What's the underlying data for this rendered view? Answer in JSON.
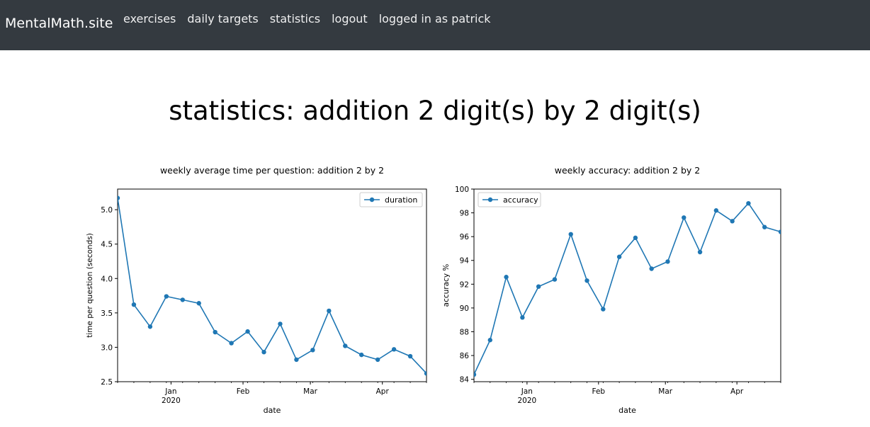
{
  "nav": {
    "brand": "MentalMath.site",
    "links": [
      "exercises",
      "daily targets",
      "statistics",
      "logout",
      "logged in as patrick"
    ]
  },
  "page_title": "statistics: addition 2 digit(s) by 2 digit(s)",
  "colors": {
    "navbar": "#343a40",
    "series": "#1f77b4"
  },
  "chart_data": [
    {
      "type": "line",
      "title": "weekly average time per question: addition 2 by 2",
      "xlabel": "date",
      "ylabel": "time per question (seconds)",
      "legend": "upper right",
      "series": [
        {
          "name": "duration",
          "x": [
            "2019-12-09",
            "2019-12-16",
            "2019-12-23",
            "2019-12-30",
            "2020-01-06",
            "2020-01-13",
            "2020-01-20",
            "2020-01-27",
            "2020-02-03",
            "2020-02-10",
            "2020-02-17",
            "2020-02-24",
            "2020-03-02",
            "2020-03-09",
            "2020-03-16",
            "2020-03-23",
            "2020-03-30",
            "2020-04-06",
            "2020-04-13",
            "2020-04-20"
          ],
          "values": [
            5.17,
            3.62,
            3.3,
            3.74,
            3.69,
            3.64,
            3.22,
            3.06,
            3.23,
            2.93,
            3.34,
            2.82,
            2.96,
            3.53,
            3.02,
            2.89,
            2.82,
            2.97,
            2.87,
            2.62
          ]
        }
      ],
      "xlim": [
        "2019-12-09",
        "2020-04-20"
      ],
      "ylim": [
        2.5,
        5.3
      ],
      "yticks": [
        2.5,
        3.0,
        3.5,
        4.0,
        4.5,
        5.0
      ],
      "ytick_labels": [
        "2.5",
        "3.0",
        "3.5",
        "4.0",
        "4.5",
        "5.0"
      ],
      "xticks": [
        "2020-01-01",
        "2020-02-01",
        "2020-03-01",
        "2020-04-01"
      ],
      "xtick_labels": [
        "Jan",
        "Feb",
        "Mar",
        "Apr"
      ],
      "xtick_sublabel": "2020"
    },
    {
      "type": "line",
      "title": "weekly accuracy: addition 2 by 2",
      "xlabel": "date",
      "ylabel": "accuracy %",
      "legend": "upper left",
      "series": [
        {
          "name": "accuracy",
          "x": [
            "2019-12-09",
            "2019-12-16",
            "2019-12-23",
            "2019-12-30",
            "2020-01-06",
            "2020-01-13",
            "2020-01-20",
            "2020-01-27",
            "2020-02-03",
            "2020-02-10",
            "2020-02-17",
            "2020-02-24",
            "2020-03-02",
            "2020-03-09",
            "2020-03-16",
            "2020-03-23",
            "2020-03-30",
            "2020-04-06",
            "2020-04-13",
            "2020-04-20"
          ],
          "values": [
            84.4,
            87.3,
            92.6,
            89.2,
            91.8,
            92.4,
            96.2,
            92.3,
            89.9,
            94.3,
            95.9,
            93.3,
            93.9,
            97.6,
            94.7,
            98.2,
            97.3,
            98.8,
            96.8,
            96.4
          ]
        }
      ],
      "xlim": [
        "2019-12-09",
        "2020-04-20"
      ],
      "ylim": [
        83.8,
        100
      ],
      "yticks": [
        84,
        86,
        88,
        90,
        92,
        94,
        96,
        98,
        100
      ],
      "ytick_labels": [
        "84",
        "86",
        "88",
        "90",
        "92",
        "94",
        "96",
        "98",
        "100"
      ],
      "xticks": [
        "2020-01-01",
        "2020-02-01",
        "2020-03-01",
        "2020-04-01"
      ],
      "xtick_labels": [
        "Jan",
        "Feb",
        "Mar",
        "Apr"
      ],
      "xtick_sublabel": "2020"
    }
  ]
}
